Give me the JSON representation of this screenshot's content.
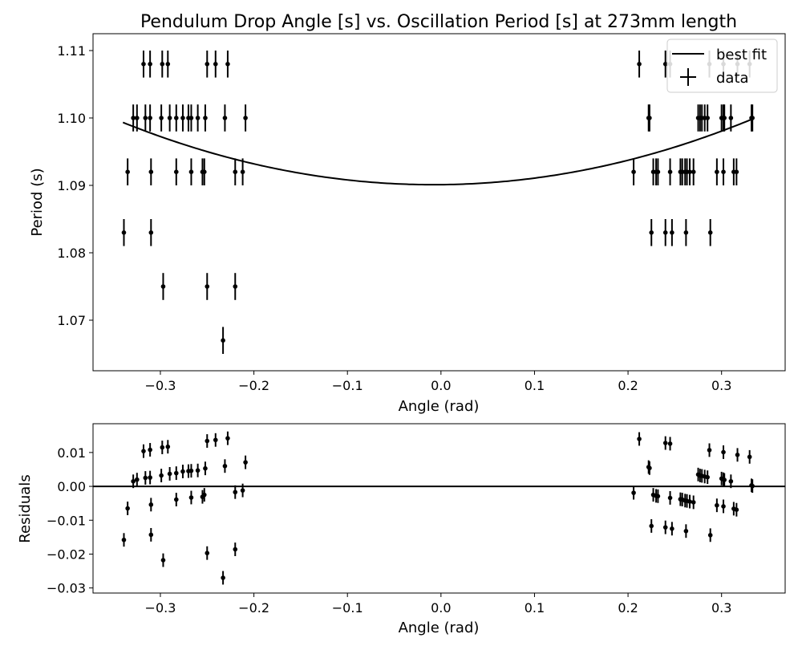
{
  "chart_data": [
    {
      "type": "scatter",
      "title": "Pendulum Drop Angle [s] vs. Oscillation Period [s] at 273mm length",
      "xlabel": "Angle (rad)",
      "ylabel": "Period (s)",
      "xlim": [
        -0.372,
        0.368
      ],
      "ylim": [
        1.0625,
        1.1125
      ],
      "xticks": [
        -0.3,
        -0.2,
        -0.1,
        0.0,
        0.1,
        0.2,
        0.3
      ],
      "xtick_labels": [
        "−0.3",
        "−0.2",
        "−0.1",
        "0.0",
        "0.1",
        "0.2",
        "0.3"
      ],
      "yticks": [
        1.07,
        1.08,
        1.09,
        1.1,
        1.11
      ],
      "ytick_labels": [
        "1.07",
        "1.08",
        "1.09",
        "1.10",
        "1.11"
      ],
      "grid": false,
      "legend": {
        "position": "top-right",
        "entries": [
          "best fit",
          "data"
        ]
      },
      "yerr": 0.002,
      "fit": {
        "name": "best fit",
        "vertex_x": -0.008,
        "vertex_y": 1.0901,
        "curvature": 0.0838,
        "x_range": [
          -0.34,
          0.333
        ]
      },
      "series": [
        {
          "name": "data",
          "x": [
            -0.318,
            -0.311,
            -0.298,
            -0.292,
            -0.25,
            -0.241,
            -0.228,
            -0.329,
            -0.325,
            -0.316,
            -0.311,
            -0.299,
            -0.29,
            -0.283,
            -0.276,
            -0.27,
            -0.267,
            -0.26,
            -0.252,
            -0.231,
            -0.209,
            -0.335,
            -0.31,
            -0.283,
            -0.267,
            -0.255,
            -0.253,
            -0.22,
            -0.212,
            -0.339,
            -0.31,
            -0.297,
            -0.25,
            -0.22,
            -0.233,
            0.212,
            0.24,
            0.245,
            0.287,
            0.302,
            0.317,
            0.33,
            0.222,
            0.223,
            0.275,
            0.277,
            0.279,
            0.282,
            0.285,
            0.3,
            0.302,
            0.303,
            0.31,
            0.332,
            0.333,
            0.206,
            0.227,
            0.23,
            0.232,
            0.245,
            0.256,
            0.258,
            0.261,
            0.263,
            0.266,
            0.27,
            0.295,
            0.302,
            0.313,
            0.316,
            0.225,
            0.24,
            0.247,
            0.262,
            0.288
          ],
          "y": [
            1.108,
            1.108,
            1.108,
            1.108,
            1.108,
            1.108,
            1.108,
            1.1,
            1.1,
            1.1,
            1.1,
            1.1,
            1.1,
            1.1,
            1.1,
            1.1,
            1.1,
            1.1,
            1.1,
            1.1,
            1.1,
            1.092,
            1.092,
            1.092,
            1.092,
            1.092,
            1.092,
            1.092,
            1.092,
            1.083,
            1.083,
            1.075,
            1.075,
            1.075,
            1.067,
            1.108,
            1.108,
            1.108,
            1.108,
            1.108,
            1.108,
            1.108,
            1.1,
            1.1,
            1.1,
            1.1,
            1.1,
            1.1,
            1.1,
            1.1,
            1.1,
            1.1,
            1.1,
            1.1,
            1.1,
            1.092,
            1.092,
            1.092,
            1.092,
            1.092,
            1.092,
            1.092,
            1.092,
            1.092,
            1.092,
            1.092,
            1.092,
            1.092,
            1.092,
            1.092,
            1.083,
            1.083,
            1.083,
            1.083,
            1.083
          ]
        }
      ]
    },
    {
      "type": "scatter",
      "title": "",
      "xlabel": "Angle (rad)",
      "ylabel": "Residuals",
      "xlim": [
        -0.372,
        0.368
      ],
      "ylim": [
        -0.0315,
        0.0185
      ],
      "xticks": [
        -0.3,
        -0.2,
        -0.1,
        0.0,
        0.1,
        0.2,
        0.3
      ],
      "xtick_labels": [
        "−0.3",
        "−0.2",
        "−0.1",
        "0.0",
        "0.1",
        "0.2",
        "0.3"
      ],
      "yticks": [
        -0.03,
        -0.02,
        -0.01,
        0.0,
        0.01
      ],
      "ytick_labels": [
        "−0.03",
        "−0.02",
        "−0.01",
        "0.00",
        "0.01"
      ],
      "grid": false,
      "reference_line": 0.0,
      "yerr": 0.002,
      "series": [
        {
          "name": "residuals",
          "x": [
            -0.318,
            -0.311,
            -0.298,
            -0.292,
            -0.25,
            -0.241,
            -0.228,
            -0.329,
            -0.325,
            -0.316,
            -0.311,
            -0.299,
            -0.29,
            -0.283,
            -0.276,
            -0.27,
            -0.267,
            -0.26,
            -0.252,
            -0.231,
            -0.209,
            -0.335,
            -0.31,
            -0.283,
            -0.267,
            -0.255,
            -0.253,
            -0.22,
            -0.212,
            -0.339,
            -0.31,
            -0.297,
            -0.25,
            -0.22,
            -0.233,
            0.212,
            0.24,
            0.245,
            0.287,
            0.302,
            0.317,
            0.33,
            0.222,
            0.223,
            0.275,
            0.277,
            0.279,
            0.282,
            0.285,
            0.3,
            0.302,
            0.303,
            0.31,
            0.332,
            0.333,
            0.206,
            0.227,
            0.23,
            0.232,
            0.245,
            0.256,
            0.258,
            0.261,
            0.263,
            0.266,
            0.27,
            0.295,
            0.302,
            0.313,
            0.316,
            0.225,
            0.24,
            0.247,
            0.262,
            0.288
          ],
          "y": [
            0.0104,
            0.0108,
            0.0115,
            0.0117,
            0.0134,
            0.0137,
            0.0142,
            0.0015,
            0.002,
            0.0025,
            0.0026,
            0.0032,
            0.0037,
            0.0039,
            0.0044,
            0.0045,
            0.0046,
            0.0047,
            0.0053,
            0.006,
            0.0071,
            -0.0065,
            -0.0054,
            -0.0039,
            -0.0033,
            -0.0031,
            -0.0025,
            -0.0017,
            -0.0012,
            -0.0158,
            -0.0143,
            -0.0218,
            -0.0197,
            -0.0186,
            -0.027,
            0.014,
            0.0128,
            0.0126,
            0.0107,
            0.0101,
            0.0093,
            0.0087,
            0.0057,
            0.0054,
            0.0035,
            0.0032,
            0.0031,
            0.0029,
            0.0027,
            0.0023,
            0.0021,
            0.0019,
            0.0015,
            0.0003,
            0.0001,
            -0.0019,
            -0.0025,
            -0.0028,
            -0.0029,
            -0.0034,
            -0.0038,
            -0.0039,
            -0.0042,
            -0.0043,
            -0.0045,
            -0.0047,
            -0.0056,
            -0.0059,
            -0.0066,
            -0.0069,
            -0.0117,
            -0.0121,
            -0.0125,
            -0.0132,
            -0.0144
          ]
        }
      ]
    }
  ]
}
